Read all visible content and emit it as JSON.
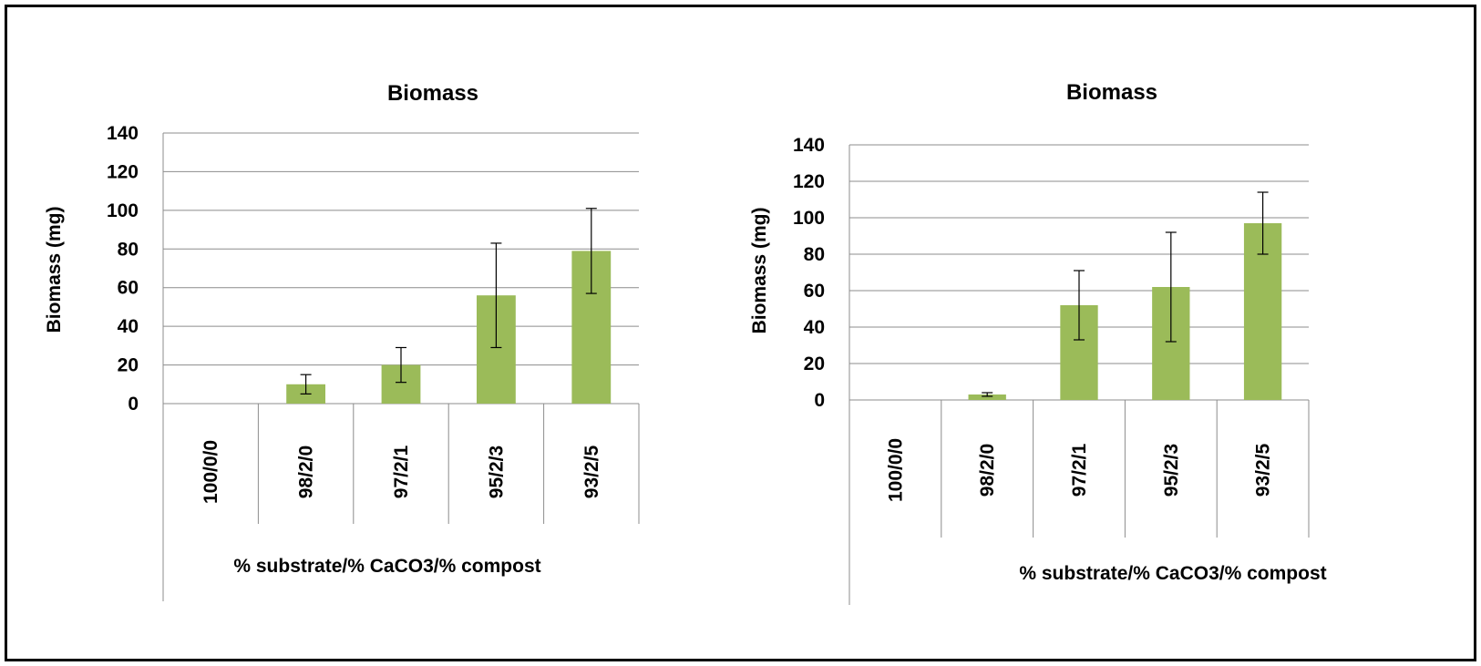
{
  "colors": {
    "bar": "#9bbb59",
    "grid": "#8c8c8c",
    "border": "#000000"
  },
  "chart_data": [
    {
      "type": "bar",
      "title": "Biomass",
      "ylabel": "Biomass (mg)",
      "xlabel": "% substrate/% CaCO3/% compost",
      "categories": [
        "100/0/0",
        "98/2/0",
        "97/2/1",
        "95/2/3",
        "93/2/5"
      ],
      "values": [
        0,
        10,
        20,
        56,
        79
      ],
      "errors": [
        0,
        5,
        9,
        27,
        22
      ],
      "ylim": [
        0,
        140
      ],
      "yticks": [
        0,
        20,
        40,
        60,
        80,
        100,
        120,
        140
      ],
      "grid": true,
      "legend": "none"
    },
    {
      "type": "bar",
      "title": "Biomass",
      "ylabel": "Biomass (mg)",
      "xlabel": "% substrate/% CaCO3/% compost",
      "categories": [
        "100/0/0",
        "98/2/0",
        "97/2/1",
        "95/2/3",
        "93/2/5"
      ],
      "values": [
        0,
        3,
        52,
        62,
        97
      ],
      "errors": [
        0,
        1,
        19,
        30,
        17
      ],
      "ylim": [
        0,
        140
      ],
      "yticks": [
        0,
        20,
        40,
        60,
        80,
        100,
        120,
        140
      ],
      "grid": true,
      "legend": "none"
    }
  ]
}
